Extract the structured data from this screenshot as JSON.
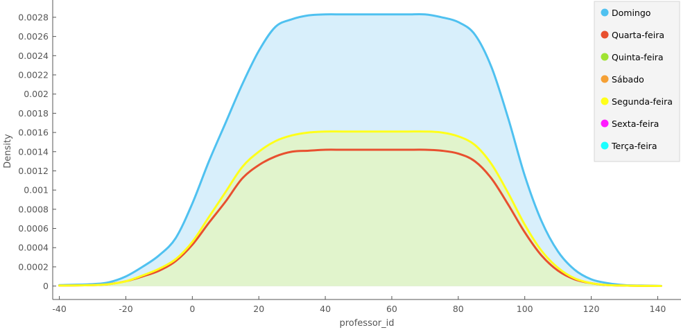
{
  "chart_data": {
    "type": "area",
    "xlabel": "professor_id",
    "ylabel": "Density",
    "xlim": [
      -42,
      147
    ],
    "ylim": [
      -0.00014,
      0.00298
    ],
    "xticks": [
      -40,
      -20,
      0,
      20,
      40,
      60,
      80,
      100,
      120,
      140
    ],
    "xtick_labels": [
      "-40",
      "-20",
      "0",
      "20",
      "40",
      "60",
      "80",
      "100",
      "120",
      "140"
    ],
    "yticks": [
      0,
      0.0002,
      0.0004,
      0.0006,
      0.0008,
      0.001,
      0.0012,
      0.0014,
      0.0016,
      0.0018,
      0.002,
      0.0022,
      0.0024,
      0.0026,
      0.0028
    ],
    "ytick_labels": [
      "0",
      "0.0002",
      "0.0004",
      "0.0006",
      "0.0008",
      "0.001",
      "0.0012",
      "0.0014",
      "0.0016",
      "0.0018",
      "0.002",
      "0.0022",
      "0.0024",
      "0.0026",
      "0.0028"
    ],
    "legend_position": "top-right",
    "series": [
      {
        "name": "Domingo",
        "color": "#4fc1f0",
        "fill": "#d8effb",
        "draw": true,
        "x": [
          -40,
          -30,
          -25,
          -20,
          -15,
          -10,
          -5,
          0,
          5,
          10,
          15,
          20,
          25,
          30,
          35,
          40,
          45,
          50,
          55,
          60,
          65,
          70,
          75,
          80,
          85,
          90,
          95,
          100,
          105,
          110,
          115,
          120,
          125,
          130,
          135,
          141
        ],
        "y": [
          1e-05,
          2e-05,
          4e-05,
          0.0001,
          0.0002,
          0.00032,
          0.0005,
          0.00086,
          0.0013,
          0.0017,
          0.0021,
          0.00245,
          0.0027,
          0.00278,
          0.00282,
          0.00283,
          0.00283,
          0.00283,
          0.00283,
          0.00283,
          0.00283,
          0.00283,
          0.0028,
          0.00275,
          0.00262,
          0.00228,
          0.00175,
          0.00115,
          0.00068,
          0.00036,
          0.00017,
          7e-05,
          3e-05,
          1e-05,
          5e-06,
          2e-06
        ]
      },
      {
        "name": "Quarta-feira",
        "color": "#e8502f",
        "fill": "#bdb89a",
        "draw": true,
        "x": [
          -40,
          -30,
          -25,
          -20,
          -15,
          -10,
          -5,
          0,
          5,
          10,
          15,
          20,
          25,
          30,
          35,
          40,
          45,
          50,
          55,
          60,
          65,
          70,
          75,
          80,
          85,
          90,
          95,
          100,
          105,
          110,
          115,
          120,
          125,
          130,
          135,
          141
        ],
        "y": [
          5e-06,
          1e-05,
          2e-05,
          5e-05,
          0.0001,
          0.00016,
          0.00026,
          0.00043,
          0.00066,
          0.00088,
          0.00112,
          0.00126,
          0.00135,
          0.0014,
          0.00141,
          0.00142,
          0.00142,
          0.00142,
          0.00142,
          0.00142,
          0.00142,
          0.00142,
          0.00141,
          0.00138,
          0.0013,
          0.00112,
          0.00085,
          0.00056,
          0.00032,
          0.00016,
          7e-05,
          3e-05,
          1e-05,
          5e-06,
          2e-06,
          1e-06
        ]
      },
      {
        "name": "Quinta-feira",
        "color": "#a0e332",
        "fill": "#e0f3c5",
        "draw": false,
        "x": [],
        "y": []
      },
      {
        "name": "Sábado",
        "color": "#f5a035",
        "fill": "#fbe2c2",
        "draw": false,
        "x": [],
        "y": []
      },
      {
        "name": "Segunda-feira",
        "color": "#ffff1a",
        "fill": "#e1f4cc",
        "draw": true,
        "x": [
          -40,
          -30,
          -25,
          -20,
          -15,
          -10,
          -5,
          0,
          5,
          10,
          15,
          20,
          25,
          30,
          35,
          40,
          45,
          50,
          55,
          60,
          65,
          70,
          75,
          80,
          85,
          90,
          95,
          100,
          105,
          110,
          115,
          120,
          125,
          130,
          135,
          141
        ],
        "y": [
          5e-06,
          1e-05,
          2e-05,
          5e-05,
          0.00011,
          0.00018,
          0.00028,
          0.00046,
          0.00072,
          0.00098,
          0.00124,
          0.0014,
          0.00151,
          0.00157,
          0.0016,
          0.00161,
          0.00161,
          0.00161,
          0.00161,
          0.00161,
          0.00161,
          0.00161,
          0.0016,
          0.00156,
          0.00147,
          0.00127,
          0.00097,
          0.00064,
          0.00037,
          0.00019,
          8e-05,
          3e-05,
          1e-05,
          5e-06,
          2e-06,
          1e-06
        ]
      },
      {
        "name": "Sexta-feira",
        "color": "#ff1aff",
        "fill": "#fbd0fb",
        "draw": false,
        "x": [],
        "y": []
      },
      {
        "name": "Terça-feira",
        "color": "#1affff",
        "fill": "#cdf9f9",
        "draw": false,
        "x": [],
        "y": []
      }
    ]
  }
}
